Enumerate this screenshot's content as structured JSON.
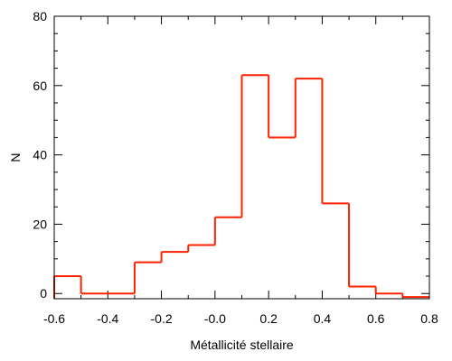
{
  "chart_data": {
    "type": "histogram",
    "title": "",
    "xlabel": "Métallicité stellaire",
    "ylabel": "N",
    "xlim": [
      -0.6,
      0.8
    ],
    "ylim": [
      -1.5,
      80
    ],
    "x_ticks": [
      {
        "value": -0.6,
        "label": "-0.6"
      },
      {
        "value": -0.4,
        "label": "-0.4"
      },
      {
        "value": -0.2,
        "label": "-0.2"
      },
      {
        "value": 0.0,
        "label": "-0.0"
      },
      {
        "value": 0.2,
        "label": "0.2"
      },
      {
        "value": 0.4,
        "label": "0.4"
      },
      {
        "value": 0.6,
        "label": "0.6"
      },
      {
        "value": 0.8,
        "label": "0.8"
      }
    ],
    "y_ticks": [
      {
        "value": 0,
        "label": "0"
      },
      {
        "value": 20,
        "label": "20"
      },
      {
        "value": 40,
        "label": "40"
      },
      {
        "value": 60,
        "label": "60"
      },
      {
        "value": 80,
        "label": "80"
      }
    ],
    "x_minor_step": 0.1,
    "y_minor_step": 5,
    "bins": [
      {
        "x0": -0.6,
        "x1": -0.5,
        "value": 5
      },
      {
        "x0": -0.5,
        "x1": -0.4,
        "value": 0
      },
      {
        "x0": -0.4,
        "x1": -0.3,
        "value": 0
      },
      {
        "x0": -0.3,
        "x1": -0.2,
        "value": 9
      },
      {
        "x0": -0.2,
        "x1": -0.1,
        "value": 12
      },
      {
        "x0": -0.1,
        "x1": 0.0,
        "value": 14
      },
      {
        "x0": 0.0,
        "x1": 0.1,
        "value": 22
      },
      {
        "x0": 0.1,
        "x1": 0.2,
        "value": 63
      },
      {
        "x0": 0.2,
        "x1": 0.3,
        "value": 45
      },
      {
        "x0": 0.3,
        "x1": 0.4,
        "value": 62
      },
      {
        "x0": 0.4,
        "x1": 0.5,
        "value": 26
      },
      {
        "x0": 0.5,
        "x1": 0.6,
        "value": 2
      },
      {
        "x0": 0.6,
        "x1": 0.7,
        "value": 0
      },
      {
        "x0": 0.7,
        "x1": 0.8,
        "value": -1
      }
    ],
    "line_color": "#ff2200",
    "grid": false,
    "legend": "none"
  }
}
